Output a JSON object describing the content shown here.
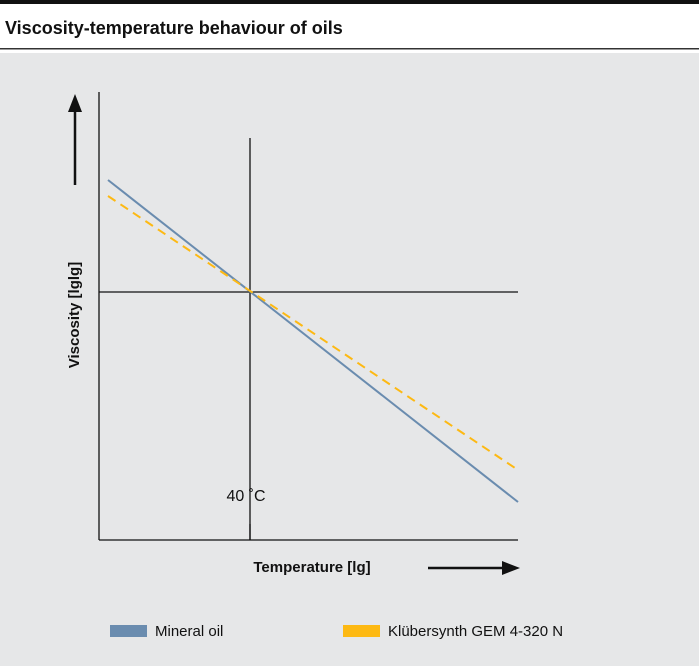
{
  "header": {
    "title": "Viscosity-temperature behaviour of oils"
  },
  "diagram": {
    "y_axis_label": "Viscosity [lglg]",
    "x_axis_label": "Temperature [lg]",
    "annotation": "40 ˚C"
  },
  "legend": {
    "items": [
      {
        "label": "Mineral oil"
      },
      {
        "label": "Klübersynth GEM 4-320 N"
      }
    ]
  }
}
